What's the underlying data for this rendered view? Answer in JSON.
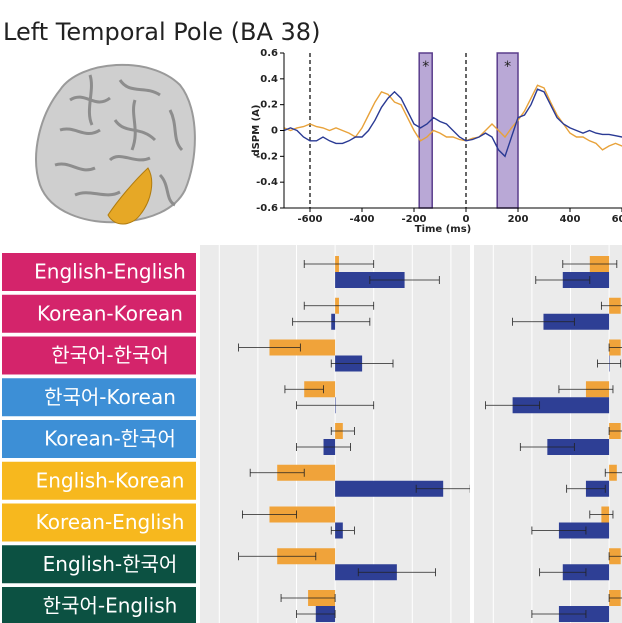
{
  "title": "Left Temporal Pole (BA 38)",
  "chart_data": [
    {
      "type": "line",
      "xlabel": "Time (ms)",
      "ylabel": "dSPM (A)",
      "xlim": [
        -700,
        650
      ],
      "ylim": [
        -0.6,
        0.6
      ],
      "xticks": [
        -600,
        -400,
        -200,
        0,
        200,
        400,
        600
      ],
      "yticks": [
        -0.6,
        -0.4,
        -0.2,
        0,
        0.2,
        0.4,
        0.6
      ],
      "vlines": [
        -600,
        0
      ],
      "regions": [
        {
          "x": [
            -180,
            -130
          ],
          "label": "*"
        },
        {
          "x": [
            120,
            200
          ],
          "label": "*"
        }
      ],
      "region_color": "#b9a8d6",
      "x": [
        -700,
        -675,
        -650,
        -625,
        -600,
        -575,
        -550,
        -525,
        -500,
        -475,
        -450,
        -425,
        -400,
        -375,
        -350,
        -325,
        -300,
        -275,
        -250,
        -225,
        -200,
        -175,
        -150,
        -125,
        -100,
        -75,
        -50,
        -25,
        0,
        25,
        50,
        75,
        100,
        125,
        150,
        175,
        200,
        225,
        250,
        275,
        300,
        325,
        350,
        375,
        400,
        425,
        450,
        475,
        500,
        525,
        550,
        575,
        600,
        625,
        650
      ],
      "series": [
        {
          "color": "#e8a23a",
          "values": [
            0.02,
            0.0,
            0.02,
            0.03,
            0.05,
            0.03,
            0.02,
            0.0,
            0.02,
            0.0,
            -0.02,
            -0.05,
            0.02,
            0.12,
            0.22,
            0.3,
            0.28,
            0.22,
            0.2,
            0.1,
            0.0,
            -0.08,
            -0.05,
            0.0,
            -0.02,
            -0.05,
            -0.05,
            -0.07,
            -0.08,
            -0.06,
            -0.05,
            0.0,
            0.05,
            0.0,
            -0.05,
            0.02,
            0.08,
            0.15,
            0.25,
            0.35,
            0.33,
            0.22,
            0.12,
            0.05,
            -0.02,
            -0.05,
            -0.05,
            -0.08,
            -0.1,
            -0.15,
            -0.12,
            -0.1,
            -0.12,
            -0.08,
            -0.1
          ]
        },
        {
          "color": "#2a3a94",
          "values": [
            0.0,
            0.02,
            0.0,
            -0.05,
            -0.08,
            -0.08,
            -0.05,
            -0.08,
            -0.1,
            -0.1,
            -0.08,
            -0.05,
            -0.05,
            0.0,
            0.08,
            0.18,
            0.25,
            0.3,
            0.25,
            0.15,
            0.05,
            0.02,
            0.05,
            0.1,
            0.07,
            0.05,
            0.0,
            -0.05,
            -0.08,
            -0.07,
            -0.05,
            -0.02,
            -0.05,
            -0.15,
            -0.2,
            -0.05,
            0.1,
            0.12,
            0.2,
            0.32,
            0.3,
            0.2,
            0.1,
            0.05,
            0.02,
            0.0,
            -0.02,
            0.0,
            -0.02,
            -0.03,
            -0.03,
            -0.04,
            -0.05,
            -0.05,
            -0.05
          ]
        }
      ]
    },
    {
      "type": "hbar",
      "categories": [
        "English-English",
        "Korean-Korean",
        "한국어-한국어",
        "한국어-Korean",
        "Korean-한국어",
        "English-Korean",
        "Korean-English",
        "English-한국어",
        "한국어-English"
      ],
      "label_colors": [
        "#d4246b",
        "#d4246b",
        "#d4246b",
        "#3d8fd6",
        "#3d8fd6",
        "#f7b81e",
        "#f7b81e",
        "#0c5142",
        "#0c5142"
      ],
      "xlim": [
        -0.35,
        0.35
      ],
      "xticks": [
        -0.3,
        -0.2,
        -0.1,
        0,
        0.1,
        0.2,
        0.3
      ],
      "series": [
        {
          "color": "#f0a33a",
          "values": [
            0.01,
            0.01,
            -0.17,
            -0.08,
            0.02,
            -0.15,
            -0.17,
            -0.15,
            -0.07
          ],
          "errors": [
            0.09,
            0.09,
            0.08,
            0.05,
            0.03,
            0.07,
            0.07,
            0.1,
            0.07
          ]
        },
        {
          "color": "#2e3f95",
          "values": [
            0.18,
            -0.01,
            0.07,
            0.0,
            -0.03,
            0.28,
            0.02,
            0.16,
            -0.05
          ],
          "errors": [
            0.09,
            0.1,
            0.08,
            0.1,
            0.07,
            0.07,
            0.03,
            0.1,
            0.05
          ]
        }
      ]
    },
    {
      "type": "hbar",
      "xlim": [
        -0.35,
        0.04
      ],
      "xticks": [
        -0.3,
        -0.2,
        -0.1,
        0
      ],
      "series": [
        {
          "color": "#f0a33a",
          "values": [
            -0.05,
            0.03,
            0.03,
            -0.06,
            0.03,
            0.02,
            -0.02,
            0.03,
            0.03
          ],
          "errors": [
            0.07,
            0.05,
            0.03,
            0.07,
            0.03,
            0.03,
            0.03,
            0.03,
            0.03
          ]
        },
        {
          "color": "#2e3f95",
          "values": [
            -0.12,
            -0.17,
            0.0,
            -0.25,
            -0.16,
            -0.06,
            -0.13,
            -0.12,
            -0.13
          ],
          "errors": [
            0.07,
            0.08,
            0.03,
            0.07,
            0.07,
            0.05,
            0.07,
            0.06,
            0.07
          ]
        }
      ]
    }
  ]
}
